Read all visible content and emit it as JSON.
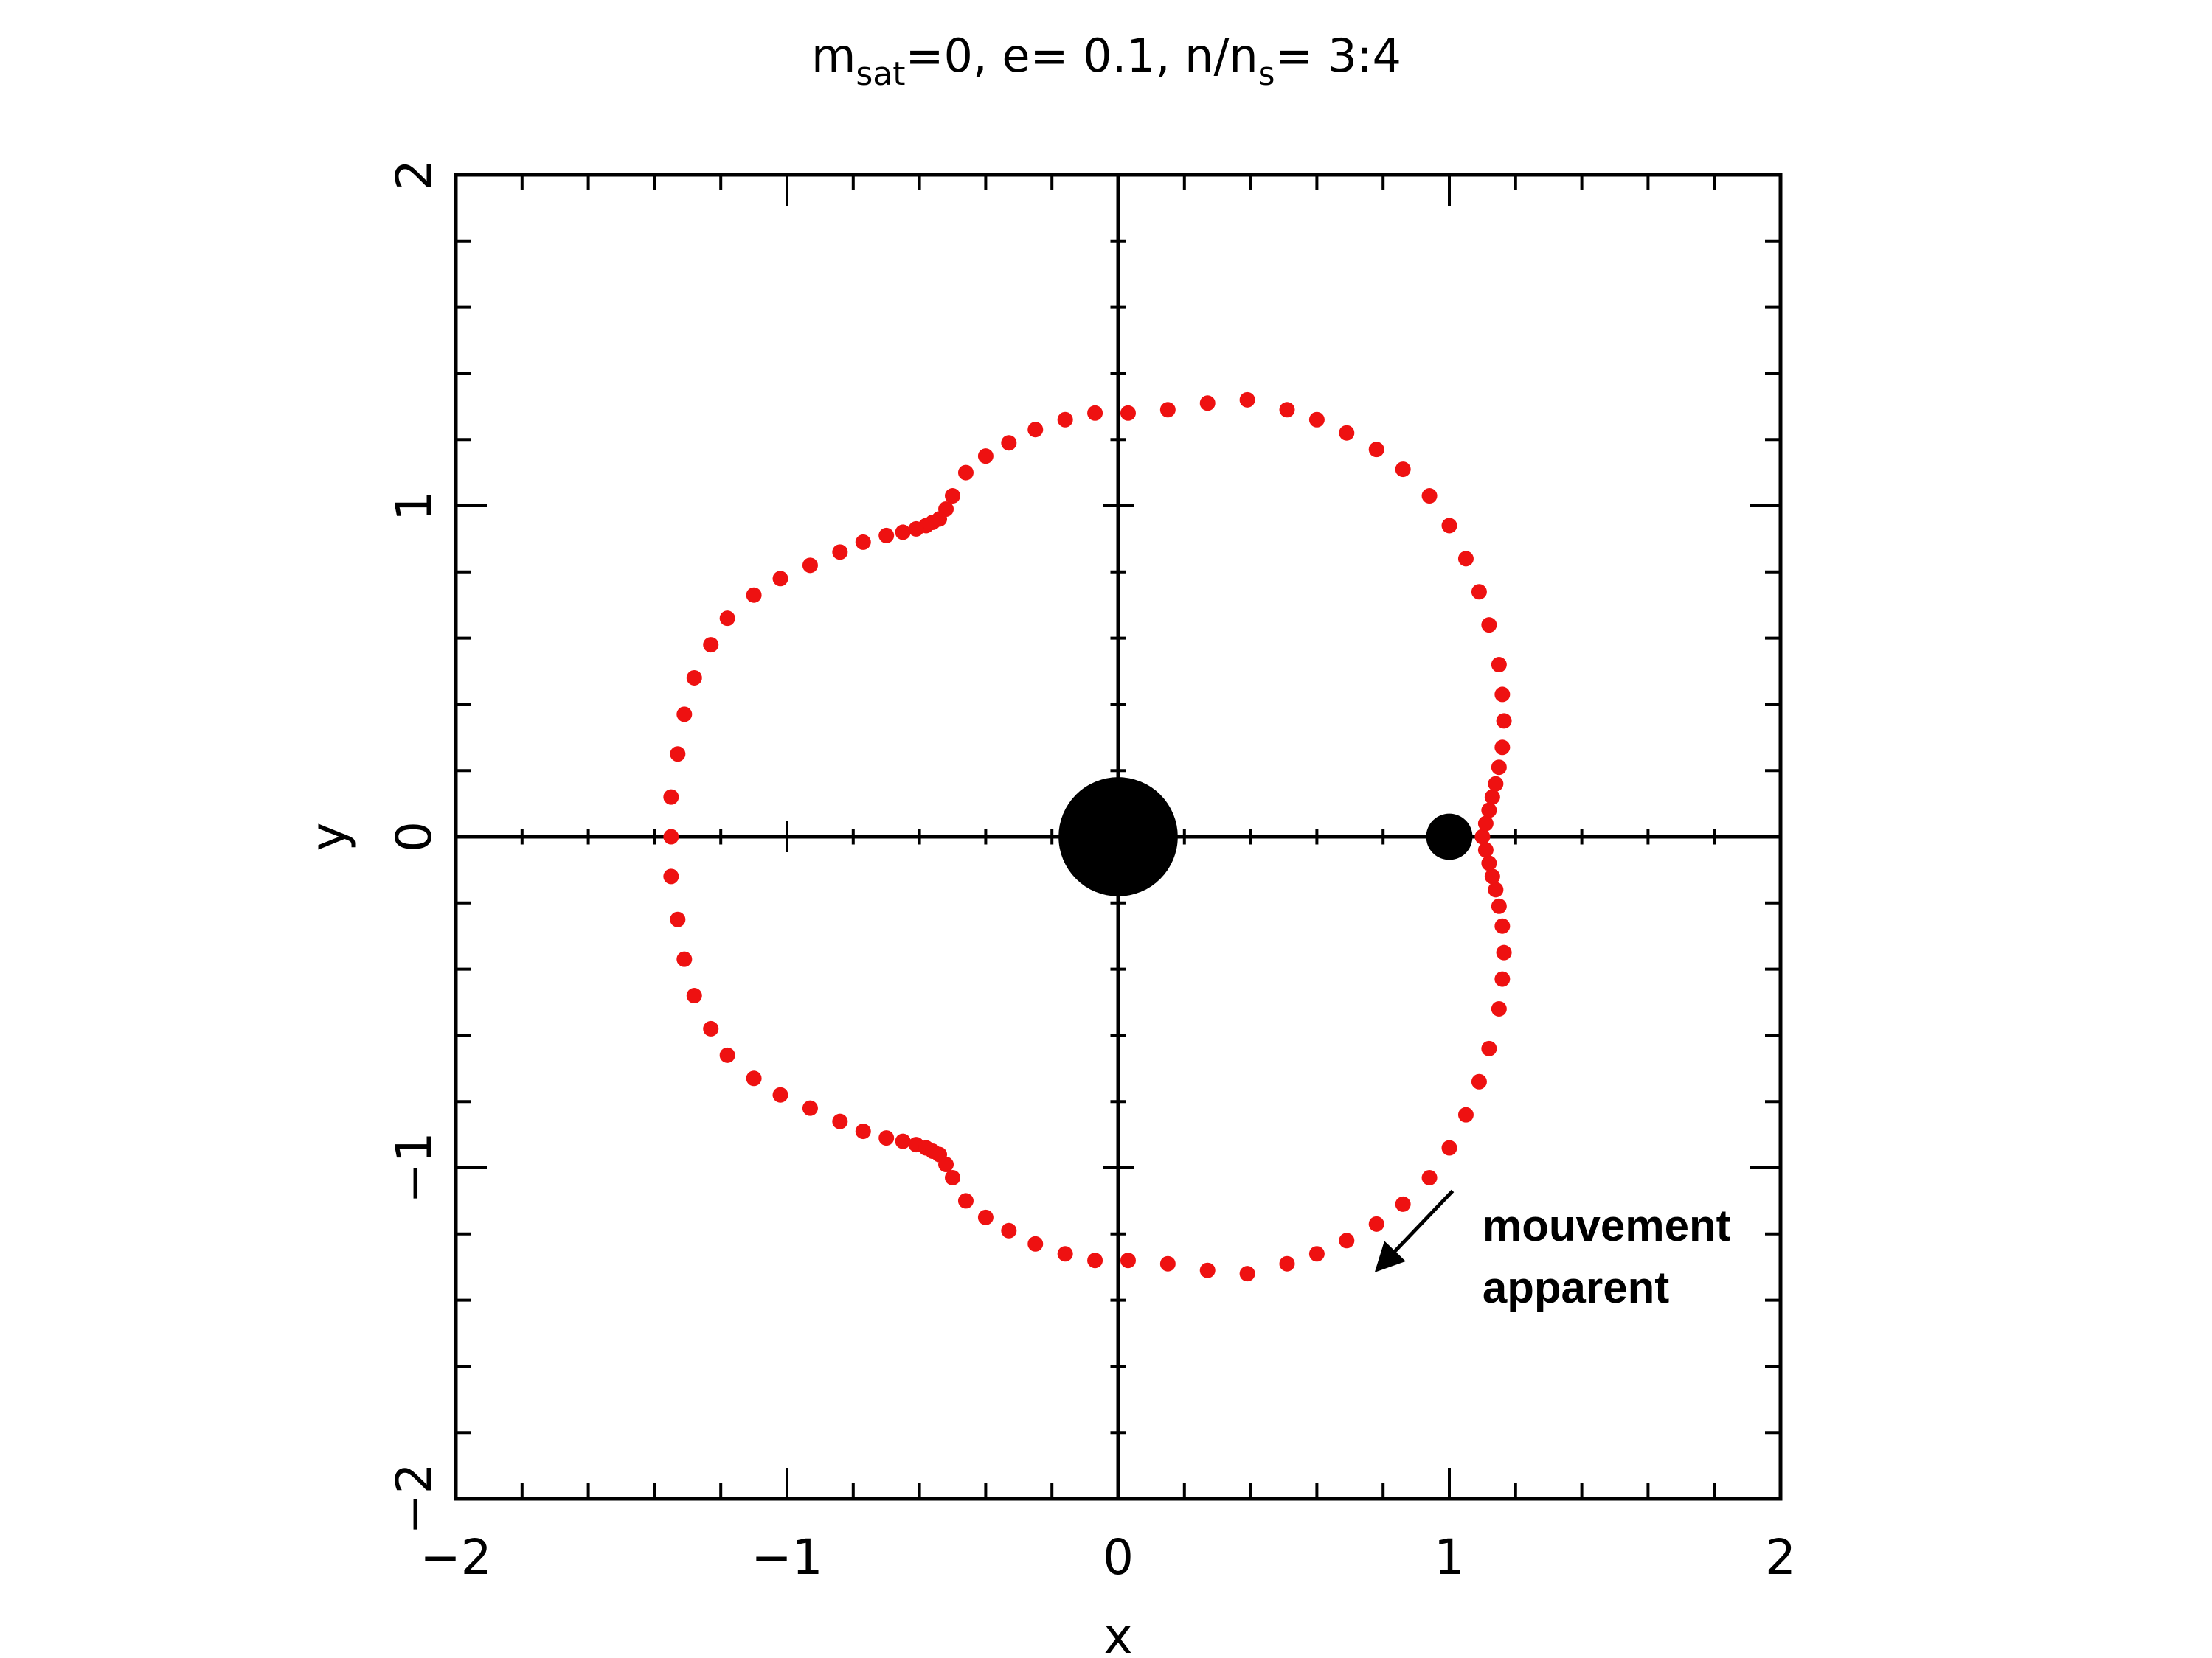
{
  "title": {
    "m_main": "m",
    "m_sub": "sat",
    "part2": "=0,  e= 0.1,  n/n",
    "n_sub": "s",
    "part3": "= 3:4"
  },
  "chart_data": {
    "type": "scatter",
    "xlabel": "x",
    "ylabel": "y",
    "xlim": [
      -2,
      2
    ],
    "ylim": [
      -2,
      2
    ],
    "xticks": [
      -2,
      -1,
      0,
      1,
      2
    ],
    "yticks": [
      -2,
      -1,
      0,
      1,
      2
    ],
    "xtick_labels": [
      "−2",
      "−1",
      "0",
      "1",
      "2"
    ],
    "ytick_labels": [
      "−2",
      "−1",
      "0",
      "1",
      "2"
    ],
    "minor_tick_step": 0.2,
    "grid": false,
    "zero_lines": true,
    "point_color": "#ee1111",
    "bodies": [
      {
        "name": "primary",
        "x": 0,
        "y": 0,
        "radius": 0.18,
        "color": "#000000"
      },
      {
        "name": "satellite",
        "x": 1,
        "y": 0,
        "radius": 0.07,
        "color": "#000000"
      }
    ],
    "series": [
      {
        "points": [
          [
            1.1,
            0.0
          ],
          [
            1.11,
            0.04
          ],
          [
            1.12,
            0.08
          ],
          [
            1.13,
            0.12
          ],
          [
            1.14,
            0.16
          ],
          [
            1.15,
            0.21
          ],
          [
            1.16,
            0.27
          ],
          [
            1.165,
            0.35
          ],
          [
            1.16,
            0.43
          ],
          [
            1.15,
            0.52
          ],
          [
            1.12,
            0.64
          ],
          [
            1.09,
            0.74
          ],
          [
            1.05,
            0.84
          ],
          [
            1.0,
            0.94
          ],
          [
            0.94,
            1.03
          ],
          [
            0.86,
            1.11
          ],
          [
            0.78,
            1.17
          ],
          [
            0.69,
            1.22
          ],
          [
            0.6,
            1.26
          ],
          [
            0.51,
            1.29
          ],
          [
            0.39,
            1.32
          ],
          [
            0.27,
            1.31
          ],
          [
            0.15,
            1.29
          ],
          [
            0.03,
            1.28
          ],
          [
            -0.07,
            1.28
          ],
          [
            -0.16,
            1.26
          ],
          [
            -0.25,
            1.23
          ],
          [
            -0.33,
            1.19
          ],
          [
            -0.4,
            1.15
          ],
          [
            -0.46,
            1.1
          ],
          [
            -0.5,
            1.03
          ],
          [
            -0.52,
            0.99
          ],
          [
            -0.54,
            0.96
          ],
          [
            -0.56,
            0.95
          ],
          [
            -0.58,
            0.94
          ],
          [
            -0.61,
            0.93
          ],
          [
            -0.65,
            0.92
          ],
          [
            -0.7,
            0.91
          ],
          [
            -0.77,
            0.89
          ],
          [
            -0.84,
            0.86
          ],
          [
            -0.93,
            0.82
          ],
          [
            -1.02,
            0.78
          ],
          [
            -1.1,
            0.73
          ],
          [
            -1.18,
            0.66
          ],
          [
            -1.23,
            0.58
          ],
          [
            -1.28,
            0.48
          ],
          [
            -1.31,
            0.37
          ],
          [
            -1.33,
            0.25
          ],
          [
            -1.35,
            0.12
          ],
          [
            -1.35,
            0.0
          ],
          [
            -1.35,
            -0.12
          ],
          [
            -1.33,
            -0.25
          ],
          [
            -1.31,
            -0.37
          ],
          [
            -1.28,
            -0.48
          ],
          [
            -1.23,
            -0.58
          ],
          [
            -1.18,
            -0.66
          ],
          [
            -1.1,
            -0.73
          ],
          [
            -1.02,
            -0.78
          ],
          [
            -0.93,
            -0.82
          ],
          [
            -0.84,
            -0.86
          ],
          [
            -0.77,
            -0.89
          ],
          [
            -0.7,
            -0.91
          ],
          [
            -0.65,
            -0.92
          ],
          [
            -0.61,
            -0.93
          ],
          [
            -0.58,
            -0.94
          ],
          [
            -0.56,
            -0.95
          ],
          [
            -0.54,
            -0.96
          ],
          [
            -0.52,
            -0.99
          ],
          [
            -0.5,
            -1.03
          ],
          [
            -0.46,
            -1.1
          ],
          [
            -0.4,
            -1.15
          ],
          [
            -0.33,
            -1.19
          ],
          [
            -0.25,
            -1.23
          ],
          [
            -0.16,
            -1.26
          ],
          [
            -0.07,
            -1.28
          ],
          [
            0.03,
            -1.28
          ],
          [
            0.15,
            -1.29
          ],
          [
            0.27,
            -1.31
          ],
          [
            0.39,
            -1.32
          ],
          [
            0.51,
            -1.29
          ],
          [
            0.6,
            -1.26
          ],
          [
            0.69,
            -1.22
          ],
          [
            0.78,
            -1.17
          ],
          [
            0.86,
            -1.11
          ],
          [
            0.94,
            -1.03
          ],
          [
            1.0,
            -0.94
          ],
          [
            1.05,
            -0.84
          ],
          [
            1.09,
            -0.74
          ],
          [
            1.12,
            -0.64
          ],
          [
            1.15,
            -0.52
          ],
          [
            1.16,
            -0.43
          ],
          [
            1.165,
            -0.35
          ],
          [
            1.16,
            -0.27
          ],
          [
            1.15,
            -0.21
          ],
          [
            1.14,
            -0.16
          ],
          [
            1.13,
            -0.12
          ],
          [
            1.12,
            -0.08
          ],
          [
            1.11,
            -0.04
          ]
        ]
      }
    ],
    "annotations": [
      {
        "text_lines": [
          "mouvement",
          "apparent"
        ],
        "x": 1.1,
        "y": -1.22
      },
      {
        "arrow": true,
        "from": [
          1.01,
          -1.07
        ],
        "to": [
          0.79,
          -1.3
        ]
      }
    ]
  }
}
